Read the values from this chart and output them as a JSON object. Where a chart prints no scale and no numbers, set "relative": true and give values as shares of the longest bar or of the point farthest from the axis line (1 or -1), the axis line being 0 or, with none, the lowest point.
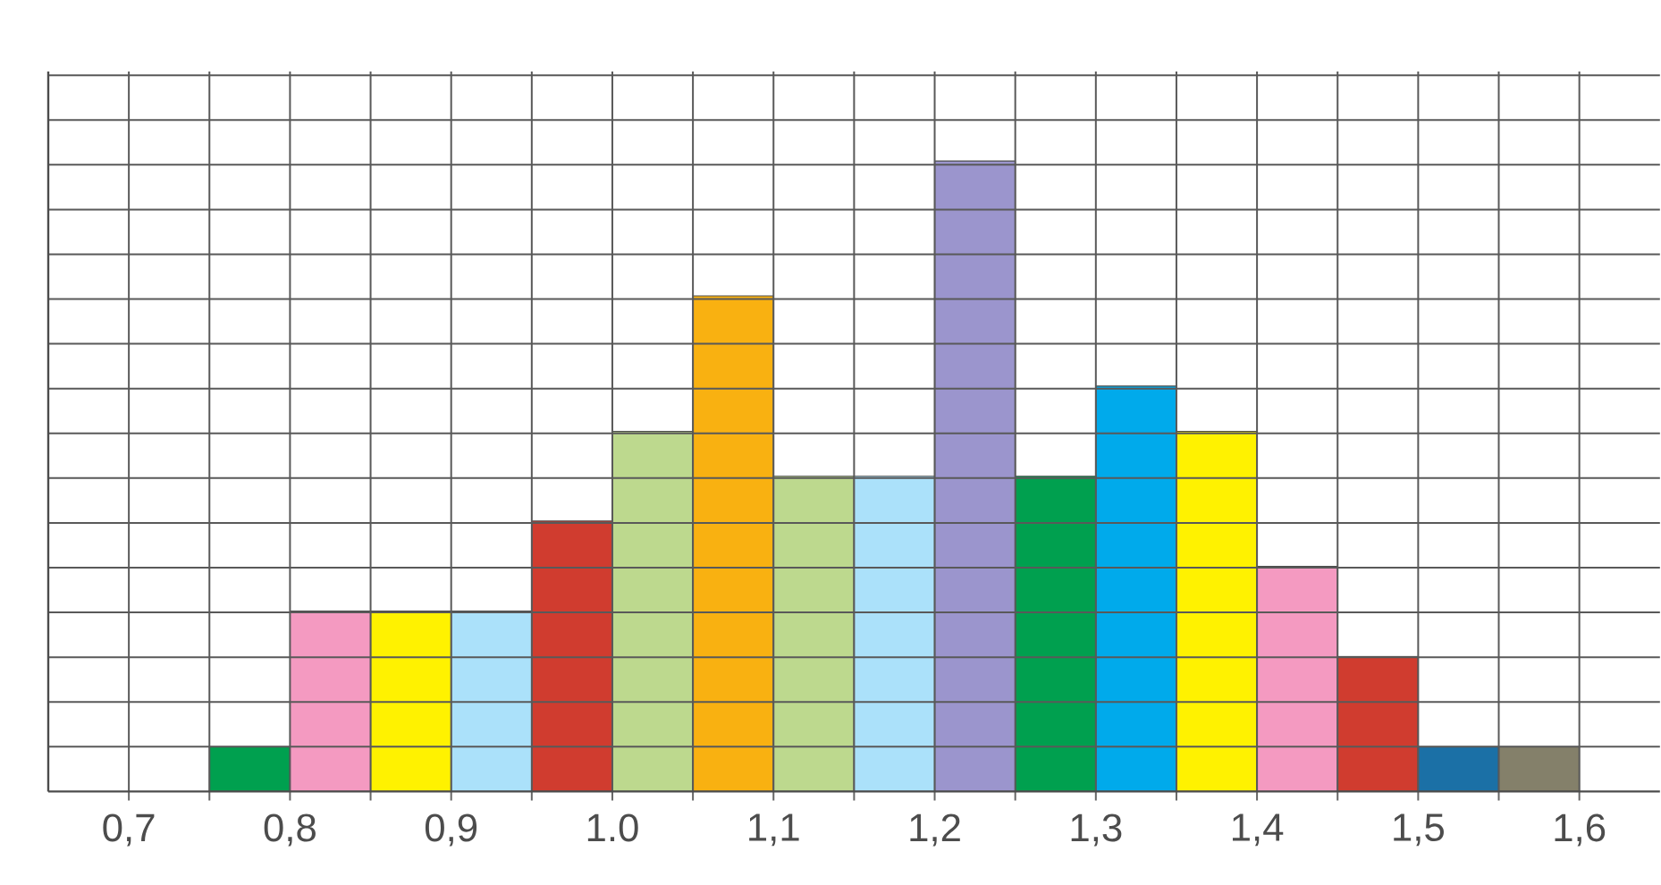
{
  "chart_data": {
    "type": "bar",
    "relative": true,
    "grid": true,
    "x": [
      0.775,
      0.825,
      0.875,
      0.925,
      0.975,
      1.025,
      1.075,
      1.125,
      1.175,
      1.225,
      1.275,
      1.325,
      1.375,
      1.425,
      1.475,
      1.525,
      1.575
    ],
    "values": [
      0.071,
      0.286,
      0.286,
      0.286,
      0.429,
      0.571,
      0.786,
      0.5,
      0.5,
      1,
      0.5,
      0.643,
      0.571,
      0.357,
      0.214,
      0.071,
      0.071
    ],
    "colors": [
      "#00a04f",
      "#f49ac1",
      "#fff200",
      "#abe1fa",
      "#d03c2f",
      "#bdd98e",
      "#f9b111",
      "#bdd98e",
      "#abe1fa",
      "#9b95cd",
      "#00a04f",
      "#00aaeb",
      "#fff200",
      "#f49ac1",
      "#d03c2f",
      "#1b70a6",
      "#84806a"
    ],
    "xlim": [
      0.65,
      1.65
    ],
    "xticks": [
      {
        "value": 0.7,
        "label": "0,7"
      },
      {
        "value": 0.8,
        "label": "0,8"
      },
      {
        "value": 0.9,
        "label": "0,9"
      },
      {
        "value": 1.0,
        "label": "1.0"
      },
      {
        "value": 1.1,
        "label": "1,1"
      },
      {
        "value": 1.2,
        "label": "1,2"
      },
      {
        "value": 1.3,
        "label": "1,3"
      },
      {
        "value": 1.4,
        "label": "1,4"
      },
      {
        "value": 1.5,
        "label": "1,5"
      },
      {
        "value": 1.6,
        "label": "1,6"
      }
    ]
  }
}
